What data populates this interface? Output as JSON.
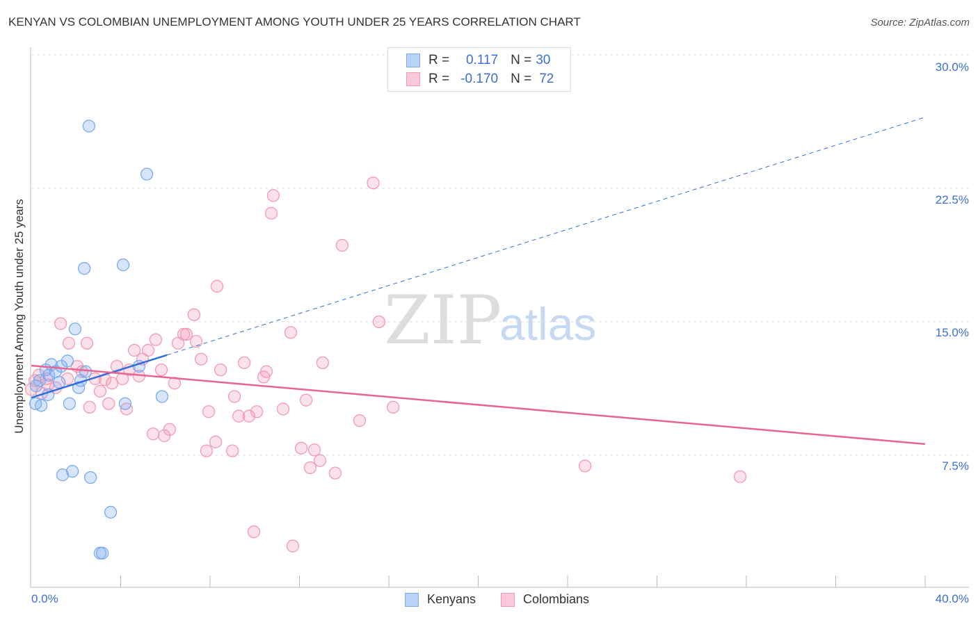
{
  "title": "KENYAN VS COLOMBIAN UNEMPLOYMENT AMONG YOUTH UNDER 25 YEARS CORRELATION CHART",
  "source": "Source: ZipAtlas.com",
  "legend": {
    "r_label": "R =",
    "n_label": "N =",
    "kenyans": {
      "r": "0.117",
      "n": "30"
    },
    "colombians": {
      "r": "-0.170",
      "n": "72"
    }
  },
  "bottom_legend": {
    "kenyans": "Kenyans",
    "colombians": "Colombians"
  },
  "watermark": {
    "zip": "ZIP",
    "atlas": "atlas"
  },
  "colors": {
    "blue": "#7aaaf0",
    "blue_line": "#2f6fd6",
    "pink": "#f29ab4",
    "pink_line": "#e8658f",
    "tick": "#3b6fd4"
  },
  "chart_data": {
    "type": "scatter",
    "title": "KENYAN VS COLOMBIAN UNEMPLOYMENT AMONG YOUTH UNDER 25 YEARS CORRELATION CHART",
    "xlabel": "",
    "ylabel": "Unemployment Among Youth under 25 years",
    "xlim": [
      0,
      40
    ],
    "ylim": [
      0,
      30
    ],
    "x_tick_labels": [
      "0.0%",
      "40.0%"
    ],
    "y_ticks": [
      {
        "v": 30,
        "label": "30.0%"
      },
      {
        "v": 22.5,
        "label": "22.5%"
      },
      {
        "v": 15,
        "label": "15.0%"
      },
      {
        "v": 7.5,
        "label": "7.5%"
      }
    ],
    "series": [
      {
        "name": "Kenyans",
        "points": [
          [
            2.58,
            26.0
          ],
          [
            5.17,
            23.3
          ],
          [
            2.37,
            18.0
          ],
          [
            4.11,
            18.2
          ],
          [
            1.96,
            14.6
          ],
          [
            1.62,
            12.8
          ],
          [
            0.9,
            12.6
          ],
          [
            1.34,
            12.5
          ],
          [
            0.65,
            12.3
          ],
          [
            1.09,
            12.2
          ],
          [
            2.43,
            12.2
          ],
          [
            4.82,
            12.5
          ],
          [
            0.78,
            12.0
          ],
          [
            0.37,
            11.7
          ],
          [
            1.25,
            11.6
          ],
          [
            2.21,
            11.7
          ],
          [
            2.12,
            11.3
          ],
          [
            0.22,
            11.4
          ],
          [
            0.75,
            10.9
          ],
          [
            0.19,
            10.4
          ],
          [
            0.44,
            10.3
          ],
          [
            1.71,
            10.4
          ],
          [
            4.2,
            10.4
          ],
          [
            5.85,
            10.8
          ],
          [
            1.4,
            6.4
          ],
          [
            1.84,
            6.6
          ],
          [
            2.65,
            6.25
          ],
          [
            3.55,
            4.3
          ],
          [
            3.08,
            2.0
          ],
          [
            3.18,
            2.0
          ]
        ],
        "trend": {
          "y_at_0": 10.74,
          "y_at_40": 26.5,
          "solid_until": 6.07
        }
      },
      {
        "name": "Colombians",
        "points": [
          [
            15.3,
            22.8
          ],
          [
            10.83,
            22.1
          ],
          [
            10.74,
            21.1
          ],
          [
            13.91,
            19.3
          ],
          [
            8.31,
            17.0
          ],
          [
            1.31,
            14.9
          ],
          [
            15.56,
            15.0
          ],
          [
            7.28,
            15.4
          ],
          [
            1.68,
            13.8
          ],
          [
            2.49,
            13.8
          ],
          [
            6.82,
            14.3
          ],
          [
            6.94,
            14.3
          ],
          [
            11.61,
            14.4
          ],
          [
            5.57,
            14.0
          ],
          [
            6.57,
            13.8
          ],
          [
            7.38,
            13.9
          ],
          [
            4.61,
            13.4
          ],
          [
            5.23,
            13.4
          ],
          [
            4.98,
            12.9
          ],
          [
            7.6,
            12.9
          ],
          [
            9.53,
            12.7
          ],
          [
            13.04,
            12.7
          ],
          [
            3.83,
            12.5
          ],
          [
            2.05,
            12.5
          ],
          [
            8.47,
            12.3
          ],
          [
            4.39,
            12.3
          ],
          [
            5.82,
            12.3
          ],
          [
            10.52,
            12.2
          ],
          [
            2.27,
            12.2
          ],
          [
            0.34,
            12.0
          ],
          [
            4.82,
            11.95
          ],
          [
            10.4,
            11.9
          ],
          [
            0.68,
            11.8
          ],
          [
            1.62,
            11.8
          ],
          [
            2.86,
            11.8
          ],
          [
            3.3,
            11.75
          ],
          [
            4.08,
            11.8
          ],
          [
            0.16,
            11.7
          ],
          [
            3.61,
            11.55
          ],
          [
            6.41,
            11.55
          ],
          [
            0.75,
            11.45
          ],
          [
            1.09,
            11.3
          ],
          [
            3.08,
            11.1
          ],
          [
            9.09,
            10.8
          ],
          [
            12.3,
            10.6
          ],
          [
            2.61,
            10.2
          ],
          [
            3.46,
            10.4
          ],
          [
            4.26,
            10.1
          ],
          [
            16.19,
            10.2
          ],
          [
            11.27,
            10.1
          ],
          [
            7.94,
            9.95
          ],
          [
            10.09,
            9.95
          ],
          [
            9.28,
            9.7
          ],
          [
            9.74,
            9.7
          ],
          [
            14.69,
            9.45
          ],
          [
            6.19,
            8.95
          ],
          [
            5.45,
            8.7
          ],
          [
            5.95,
            8.6
          ],
          [
            8.25,
            8.25
          ],
          [
            7.84,
            7.75
          ],
          [
            9.0,
            7.75
          ],
          [
            12.08,
            7.9
          ],
          [
            12.67,
            7.8
          ],
          [
            12.92,
            7.2
          ],
          [
            12.48,
            6.8
          ],
          [
            13.6,
            6.5
          ],
          [
            24.78,
            6.9
          ],
          [
            31.72,
            6.3
          ],
          [
            9.96,
            3.2
          ],
          [
            11.7,
            2.4
          ],
          [
            0.47,
            11.0
          ],
          [
            0.0,
            11.2
          ]
        ],
        "trend": {
          "y_at_0": 12.54,
          "y_at_40": 8.13
        }
      }
    ]
  }
}
